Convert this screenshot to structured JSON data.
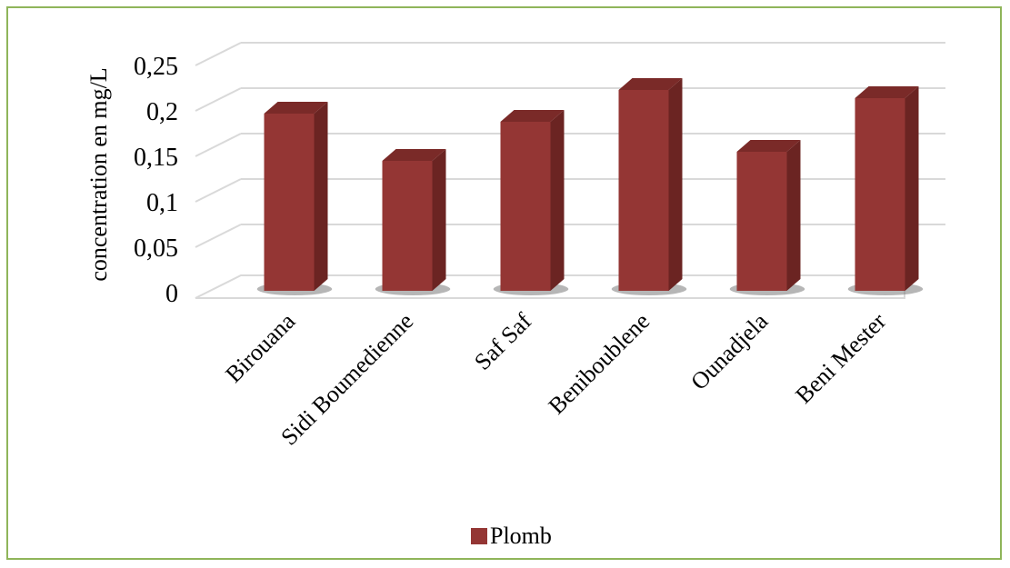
{
  "chart_data": {
    "type": "bar",
    "categories": [
      "Birouana",
      "Sidi Boumedienne",
      "Saf Saf",
      "Beniboublene",
      "Ounadjela",
      "Beni Mester"
    ],
    "series": [
      {
        "name": "Plomb",
        "values": [
          0.207,
          0.155,
          0.198,
          0.233,
          0.165,
          0.224
        ]
      }
    ],
    "ylabel": "concentration en mg/L",
    "xlabel": "",
    "ylim": [
      0,
      0.25
    ],
    "yticks": [
      "0",
      "0,05",
      "0,1",
      "0,15",
      "0,2",
      "0,25"
    ],
    "grid": true,
    "legend_position": "bottom",
    "colors": {
      "front": "#943634",
      "side": "#6b2422",
      "top": "#7a2a28",
      "grid": "#d9d9d9",
      "frame": "#8fb55a"
    }
  }
}
